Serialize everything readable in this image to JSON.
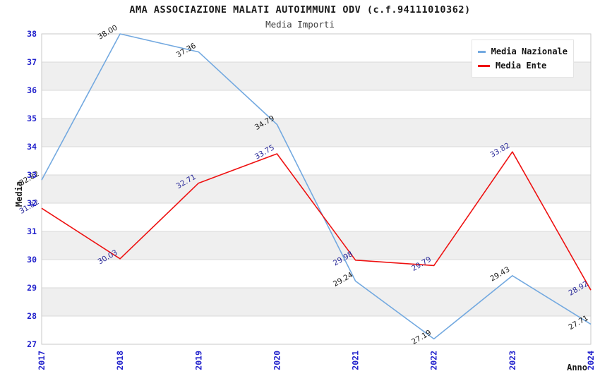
{
  "chart_data": {
    "type": "line",
    "title": "AMA ASSOCIAZIONE MALATI AUTOIMMUNI ODV (c.f.94111010362)",
    "subtitle": "Media Importi",
    "xlabel": "Anno",
    "ylabel": "Media",
    "categories": [
      "2017",
      "2018",
      "2019",
      "2020",
      "2021",
      "2022",
      "2023",
      "2024"
    ],
    "y_ticks": [
      27,
      28,
      29,
      30,
      31,
      32,
      33,
      34,
      35,
      36,
      37,
      38
    ],
    "ylim": [
      27,
      38
    ],
    "grid": "horizontal-bands-alternating",
    "legend_position": "top-right",
    "series": [
      {
        "name": "Media Nazionale",
        "color": "#73a9e0",
        "label_color": "#1a1a1a",
        "values": [
          32.82,
          38.0,
          37.36,
          34.79,
          29.24,
          27.19,
          29.43,
          27.71
        ]
      },
      {
        "name": "Media Ente",
        "color": "#ee1111",
        "label_color": "#2b2b99",
        "values": [
          31.82,
          30.03,
          32.71,
          33.75,
          29.98,
          29.79,
          33.82,
          28.92
        ]
      }
    ],
    "colors": {
      "tick_label": "#2222cc",
      "band_light": "#ffffff",
      "band_dark": "#efefef",
      "gridline": "#d9d9d9",
      "plot_border": "#c9c9c9",
      "title": "#1a1a1a",
      "subtitle": "#3c3c3c"
    }
  }
}
